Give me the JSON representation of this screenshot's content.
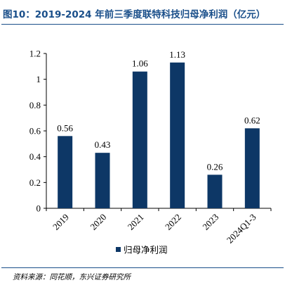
{
  "title": "图10：2019-2024 年前三季度联特科技归母净利润（亿元）",
  "source": "资料来源：同花顺，东兴证券研究所",
  "colors": {
    "bar": "#0d3766",
    "title": "#1a4f8a",
    "axis": "#000000"
  },
  "chart_data": {
    "type": "bar",
    "categories": [
      "2019",
      "2020",
      "2021",
      "2022",
      "2023",
      "2024Q1-3"
    ],
    "series": [
      {
        "name": "归母净利润",
        "values": [
          0.56,
          0.43,
          1.06,
          1.13,
          0.26,
          0.62
        ]
      }
    ],
    "data_labels": [
      "0.56",
      "0.43",
      "1.06",
      "1.13",
      "0.26",
      "0.62"
    ],
    "yticks": [
      0,
      0.2,
      0.4,
      0.6,
      0.8,
      1,
      1.2
    ],
    "ytick_labels": [
      "0",
      "0.2",
      "0.4",
      "0.6",
      "0.8",
      "1",
      "1.2"
    ],
    "ylim": [
      0,
      1.2
    ],
    "legend_position": "bottom",
    "grid": false
  }
}
